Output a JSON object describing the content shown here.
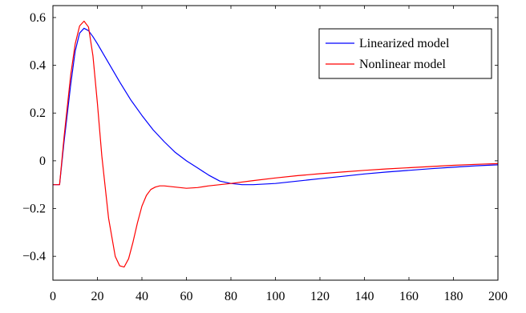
{
  "chart_data": {
    "type": "line",
    "title": "",
    "xlabel": "",
    "ylabel": "",
    "xlim": [
      0,
      200
    ],
    "ylim": [
      -0.5,
      0.65
    ],
    "grid": false,
    "legend_position": "top-right",
    "x_ticks": [
      0,
      20,
      40,
      60,
      80,
      100,
      120,
      140,
      160,
      180,
      200
    ],
    "x_tick_labels": [
      "0",
      "20",
      "40",
      "60",
      "80",
      "100",
      "120",
      "140",
      "160",
      "180",
      "200"
    ],
    "y_ticks": [
      -0.4,
      -0.2,
      0,
      0.2,
      0.4,
      0.6
    ],
    "y_tick_labels": [
      "−0.4",
      "−0.2",
      "0",
      "0.2",
      "0.4",
      "0.6"
    ],
    "series": [
      {
        "name": "Linearized model",
        "color": "#0000ff",
        "x": [
          0,
          3,
          5,
          8,
          10,
          12,
          14,
          16,
          18,
          20,
          25,
          30,
          35,
          40,
          45,
          50,
          55,
          60,
          65,
          70,
          75,
          80,
          85,
          90,
          100,
          110,
          120,
          130,
          140,
          150,
          160,
          170,
          180,
          190,
          200
        ],
        "y": [
          -0.1,
          -0.1,
          0.08,
          0.32,
          0.46,
          0.535,
          0.555,
          0.545,
          0.52,
          0.49,
          0.41,
          0.33,
          0.255,
          0.19,
          0.13,
          0.08,
          0.035,
          0.0,
          -0.03,
          -0.06,
          -0.085,
          -0.095,
          -0.1,
          -0.1,
          -0.095,
          -0.085,
          -0.075,
          -0.065,
          -0.055,
          -0.047,
          -0.04,
          -0.033,
          -0.027,
          -0.021,
          -0.017
        ]
      },
      {
        "name": "Nonlinear model",
        "color": "#ff0000",
        "x": [
          0,
          3,
          5,
          8,
          10,
          12,
          14,
          16,
          18,
          20,
          22,
          25,
          28,
          30,
          32,
          34,
          36,
          38,
          40,
          42,
          44,
          46,
          48,
          50,
          55,
          60,
          65,
          70,
          80,
          90,
          100,
          110,
          120,
          130,
          140,
          150,
          160,
          170,
          180,
          190,
          200
        ],
        "y": [
          -0.1,
          -0.1,
          0.1,
          0.36,
          0.49,
          0.565,
          0.585,
          0.56,
          0.44,
          0.24,
          0.02,
          -0.24,
          -0.4,
          -0.44,
          -0.445,
          -0.41,
          -0.34,
          -0.26,
          -0.19,
          -0.145,
          -0.12,
          -0.11,
          -0.105,
          -0.105,
          -0.11,
          -0.115,
          -0.112,
          -0.105,
          -0.095,
          -0.083,
          -0.072,
          -0.062,
          -0.054,
          -0.047,
          -0.04,
          -0.034,
          -0.029,
          -0.024,
          -0.019,
          -0.015,
          -0.012
        ]
      }
    ]
  }
}
